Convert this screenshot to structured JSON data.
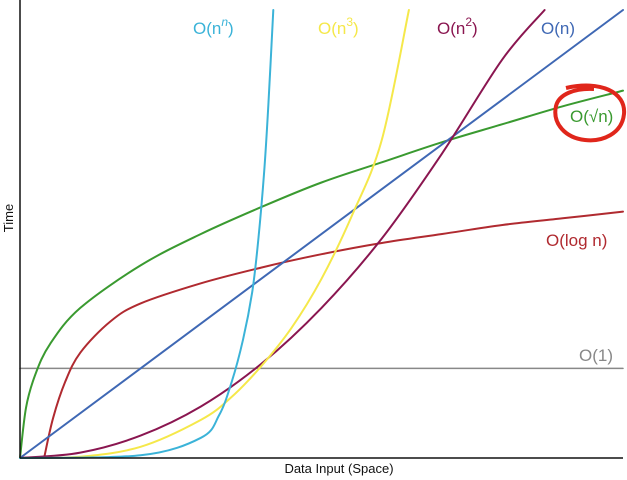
{
  "chart_data": {
    "type": "line",
    "title": "",
    "xlabel": "Data Input (Space)",
    "ylabel": "Time",
    "grid": false,
    "legend": "inline labels next to each curve",
    "xlim": [
      0,
      10
    ],
    "ylim": [
      0,
      10
    ],
    "ticks": "none",
    "series": [
      {
        "key": "nn",
        "label": {
          "base": "O(n",
          "sup": "n",
          "sup_italic": true,
          "close": ")"
        },
        "color": "#3bb3d8",
        "x": [
          0,
          2,
          3,
          3.3,
          3.5,
          3.7,
          3.85,
          3.95,
          4.05,
          4.12,
          4.2
        ],
        "y": [
          0,
          0.06,
          0.45,
          0.95,
          1.65,
          2.65,
          3.7,
          4.85,
          6.4,
          7.9,
          10
        ]
      },
      {
        "key": "n3",
        "label": {
          "base": "O(n",
          "sup": "3",
          "sup_italic": false,
          "close": ")"
        },
        "color": "#f5e84a",
        "x": [
          0,
          1,
          2,
          3,
          3.5,
          4,
          4.5,
          5,
          5.5,
          6,
          6.45
        ],
        "y": [
          0,
          0.03,
          0.25,
          0.85,
          1.35,
          2.05,
          2.9,
          4,
          5.4,
          7.1,
          10
        ]
      },
      {
        "key": "n2",
        "label": {
          "base": "O(n",
          "sup": "2",
          "sup_italic": false,
          "close": ")"
        },
        "color": "#8a1650",
        "x": [
          0,
          1,
          2,
          3,
          4,
          5,
          6,
          7,
          8,
          8.7
        ],
        "y": [
          0,
          0.12,
          0.5,
          1.15,
          2.1,
          3.35,
          4.9,
          6.8,
          8.9,
          10
        ]
      },
      {
        "key": "n",
        "label": {
          "base": "O(n)",
          "sup": "",
          "sup_italic": false,
          "close": ""
        },
        "color": "#3f68b4",
        "x": [
          0,
          10
        ],
        "y": [
          0,
          10
        ]
      },
      {
        "key": "sqrtn",
        "label": {
          "base": "O(√n)",
          "sup": "",
          "sup_italic": false,
          "close": ""
        },
        "color": "#3a9a30",
        "x": [
          0,
          0.1,
          0.25,
          0.5,
          1,
          2,
          3,
          4,
          5,
          6,
          7,
          8,
          9,
          10
        ],
        "y": [
          0,
          1.12,
          1.85,
          2.55,
          3.35,
          4.3,
          5,
          5.6,
          6.15,
          6.6,
          7.05,
          7.45,
          7.85,
          8.2
        ]
      },
      {
        "key": "logn",
        "label": {
          "base": "O(log n)",
          "sup": "",
          "sup_italic": false,
          "close": ""
        },
        "color": "#b02a30",
        "x": [
          0.4,
          0.55,
          0.75,
          1,
          1.5,
          2,
          3,
          4,
          5,
          6,
          7,
          8,
          9,
          10
        ],
        "y": [
          0,
          0.9,
          1.7,
          2.35,
          3.05,
          3.45,
          3.9,
          4.25,
          4.55,
          4.8,
          5,
          5.2,
          5.35,
          5.5
        ]
      },
      {
        "key": "const",
        "label": {
          "base": "O(1)",
          "sup": "",
          "sup_italic": false,
          "close": ""
        },
        "color": "#888888",
        "x": [
          0,
          10
        ],
        "y": [
          2,
          2
        ]
      }
    ],
    "highlight": {
      "series": "sqrtn",
      "shape": "hand-drawn ring",
      "color": "#e0261b"
    }
  }
}
